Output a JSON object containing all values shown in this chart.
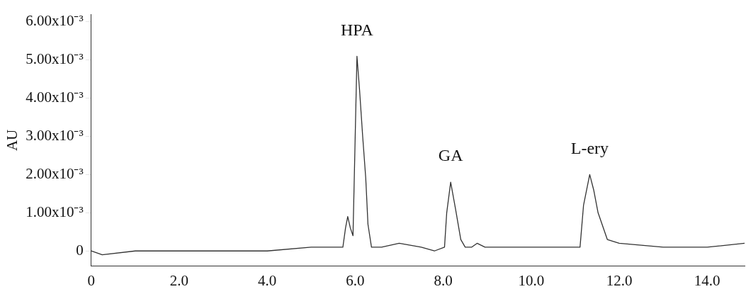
{
  "chart_data": {
    "type": "line",
    "ylabel": "AU",
    "grid": false,
    "legend": false,
    "marker": "none",
    "line_style": "solid",
    "xlim": [
      0,
      14.85
    ],
    "ylim": [
      -0.0004,
      0.0062
    ],
    "xticks": [
      0,
      {
        "value": 2,
        "label": "2.0"
      },
      {
        "value": 4,
        "label": "4.0"
      },
      {
        "value": 6,
        "label": "6.0"
      },
      {
        "value": 8,
        "label": "8.0"
      },
      {
        "value": 10,
        "label": "10.0"
      },
      {
        "value": 12,
        "label": "12.0"
      },
      {
        "value": 14,
        "label": "14.0"
      }
    ],
    "yticks": [
      0,
      {
        "value": 0.001,
        "label": "1.00x10⁻³"
      },
      {
        "value": 0.002,
        "label": "2.00x10⁻³"
      },
      {
        "value": 0.003,
        "label": "3.00x10⁻³"
      },
      {
        "value": 0.004,
        "label": "4.00x10⁻³"
      },
      {
        "value": 0.005,
        "label": "5.00x10⁻³"
      },
      {
        "value": 0.006,
        "label": "6.00x10⁻³"
      }
    ],
    "annotations": [
      {
        "text": "HPA",
        "x": 6.04,
        "y": 0.0051
      },
      {
        "text": "GA",
        "x": 8.17,
        "y": 0.0018
      },
      {
        "text": "L-ery",
        "x": 11.33,
        "y": 0.002
      }
    ],
    "series": [
      {
        "color": "#333333",
        "x": [
          0,
          0.25,
          1.0,
          2.0,
          3.0,
          4.0,
          5.0,
          5.72,
          5.78,
          5.83,
          5.89,
          5.95,
          6.0,
          6.04,
          6.1,
          6.17,
          6.24,
          6.29,
          6.37,
          6.6,
          7.0,
          7.5,
          7.8,
          8.03,
          8.08,
          8.17,
          8.28,
          8.4,
          8.5,
          8.65,
          8.77,
          8.95,
          9.5,
          10.0,
          10.5,
          11.11,
          11.19,
          11.33,
          11.42,
          11.52,
          11.73,
          12.0,
          13.0,
          14.0,
          14.85
        ],
        "values": [
          0,
          -0.0001,
          0,
          0,
          0,
          0,
          0.0001,
          0.0001,
          0.0006,
          0.0009,
          0.0006,
          0.0004,
          0.003,
          0.0051,
          0.0042,
          0.003,
          0.0019,
          0.0007,
          0.0001,
          0.0001,
          0.0002,
          0.0001,
          0,
          0.0001,
          0.001,
          0.0018,
          0.0011,
          0.0003,
          0.0001,
          0.0001,
          0.0002,
          0.0001,
          0.0001,
          0.0001,
          0.0001,
          0.0001,
          0.0012,
          0.002,
          0.0016,
          0.001,
          0.0003,
          0.0002,
          0.0001,
          0.0001,
          0.0002
        ]
      }
    ]
  }
}
